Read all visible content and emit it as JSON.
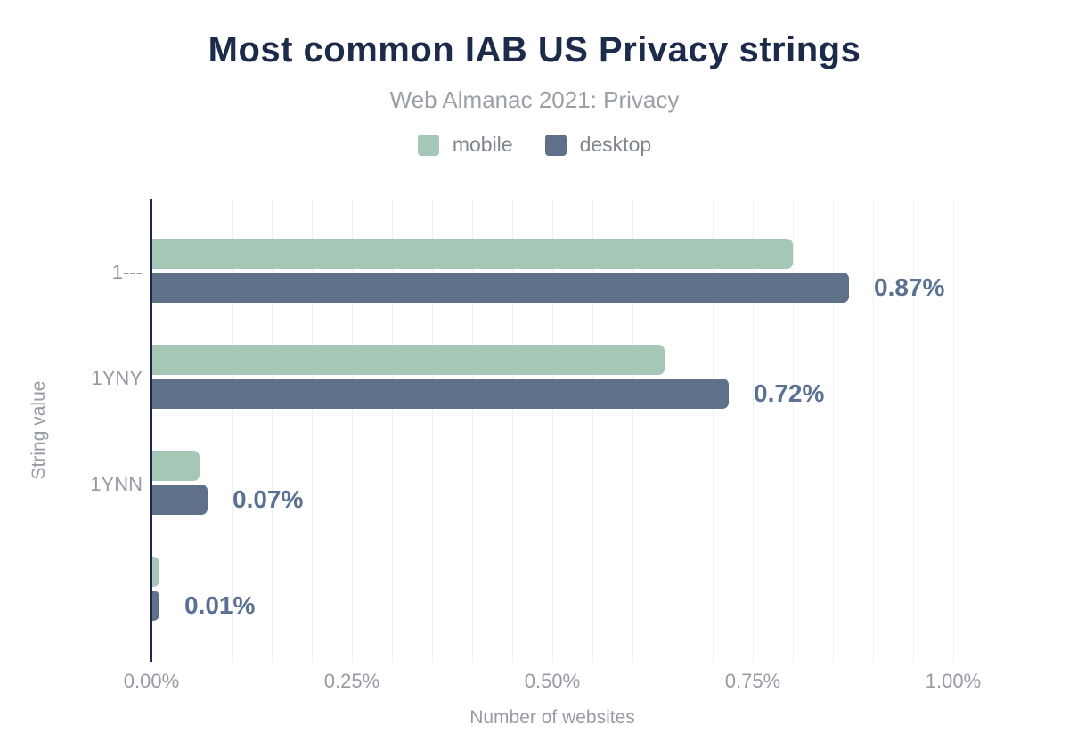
{
  "header": {
    "title": "Most common IAB US Privacy strings",
    "subtitle": "Web Almanac 2021: Privacy"
  },
  "legend": {
    "items": [
      {
        "label": "mobile",
        "color": "#a5c8b6"
      },
      {
        "label": "desktop",
        "color": "#5f7089"
      }
    ]
  },
  "chart_data": {
    "type": "bar",
    "orientation": "horizontal",
    "title": "Most common IAB US Privacy strings",
    "subtitle": "Web Almanac 2021: Privacy",
    "categories": [
      "1---",
      "1YNY",
      "1YNN",
      ""
    ],
    "series": [
      {
        "name": "mobile",
        "color": "#a5c8b6",
        "values": [
          0.8,
          0.64,
          0.06,
          0.01
        ]
      },
      {
        "name": "desktop",
        "color": "#5f7089",
        "values": [
          0.87,
          0.72,
          0.07,
          0.01
        ]
      }
    ],
    "bar_labels": {
      "series": "desktop",
      "texts": [
        "0.87%",
        "0.72%",
        "0.07%",
        "0.01%"
      ]
    },
    "xlabel": "Number of websites",
    "ylabel": "String value",
    "x_ticks": [
      {
        "value": 0.0,
        "label": "0.00%"
      },
      {
        "value": 0.25,
        "label": "0.25%"
      },
      {
        "value": 0.5,
        "label": "0.50%"
      },
      {
        "value": 0.75,
        "label": "0.75%"
      },
      {
        "value": 1.0,
        "label": "1.00%"
      }
    ],
    "xlim": [
      0,
      1.0
    ],
    "grid": {
      "axis": "x",
      "minor_step_pct": 0.05,
      "color": "#efefef"
    },
    "legend_position": "top"
  },
  "colors": {
    "background": "#ffffff",
    "title": "#1c2b49",
    "subtitle": "#9aa0a6",
    "axis_text": "#969ba3",
    "legend_text": "#7f858d",
    "data_label": "#5b7192",
    "gridline": "#efefef",
    "axis_line": "#1b2a49",
    "mobile": "#a5c8b6",
    "desktop": "#5f7089"
  }
}
